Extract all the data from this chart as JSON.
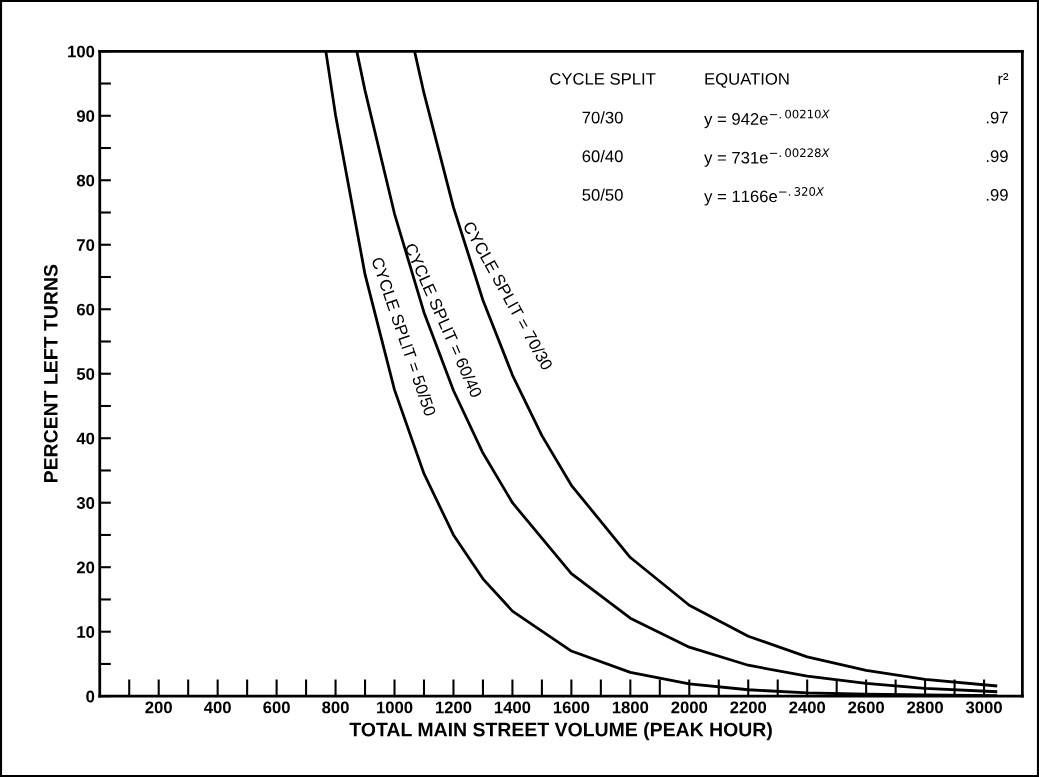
{
  "chart_data": {
    "type": "line",
    "xlabel": "TOTAL MAIN STREET VOLUME (PEAK HOUR)",
    "ylabel": "PERCENT LEFT TURNS",
    "series": [
      {
        "color": "#000000",
        "x": [
          767,
          800,
          900,
          1000,
          1100,
          1200,
          1300,
          1400,
          1600,
          1800,
          2000,
          2200,
          2400,
          2600,
          2800,
          3040
        ],
        "values": [
          100,
          90.1,
          65.4,
          47.5,
          34.5,
          25.0,
          18.2,
          13.2,
          7.0,
          3.7,
          1.9,
          1.0,
          0.5,
          0.3,
          0.2,
          0.1
        ]
      },
      {
        "color": "#000000",
        "x": [
          872,
          900,
          1000,
          1100,
          1200,
          1300,
          1400,
          1600,
          1800,
          2000,
          2200,
          2400,
          2600,
          2800,
          3040
        ],
        "values": [
          100,
          93.9,
          74.8,
          59.5,
          47.4,
          37.7,
          30.0,
          19.0,
          12.1,
          7.6,
          4.8,
          3.1,
          2.0,
          1.2,
          0.7
        ]
      },
      {
        "color": "#000000",
        "x": [
          1068,
          1100,
          1200,
          1300,
          1400,
          1500,
          1600,
          1800,
          2000,
          2200,
          2400,
          2600,
          2800,
          3040
        ],
        "values": [
          100,
          93.5,
          75.8,
          61.4,
          49.8,
          40.4,
          32.7,
          21.5,
          14.1,
          9.3,
          6.1,
          4.0,
          2.6,
          1.6
        ]
      }
    ],
    "annotations": [
      "CYCLE SPLIT",
      "EQUATION",
      "r²",
      "70/30",
      "y = 942e$^{−.00210X}$",
      ".97",
      "60/40",
      "y = 731e$^{−.00228X}$",
      ".99",
      "50/50",
      "y = 1166e$^{−.320X}$",
      ".99",
      "CYCLE SPLIT = 50/50",
      "CYCLE SPLIT = 60/40",
      "CYCLE SPLIT = 70/30"
    ],
    "xlim": [
      0,
      3130
    ],
    "ylim": [
      0,
      100
    ],
    "xticks": [
      200,
      400,
      600,
      800,
      1000,
      1200,
      1400,
      1600,
      1800,
      2000,
      2200,
      2400,
      2600,
      2800,
      3000
    ],
    "yticks": [
      0,
      {
        "value": 5,
        "label": null
      },
      10,
      {
        "value": 15,
        "label": null
      },
      20,
      {
        "value": 25,
        "label": null
      },
      30,
      {
        "value": 35,
        "label": null
      },
      40,
      {
        "value": 45,
        "label": null
      },
      50,
      {
        "value": 55,
        "label": null
      },
      60,
      {
        "value": 65,
        "label": null
      },
      70,
      {
        "value": 75,
        "label": null
      },
      80,
      {
        "value": 85,
        "label": null
      },
      90,
      {
        "value": 95,
        "label": null
      },
      100
    ],
    "grid": false,
    "marker": "none",
    "line_style": "solid"
  }
}
